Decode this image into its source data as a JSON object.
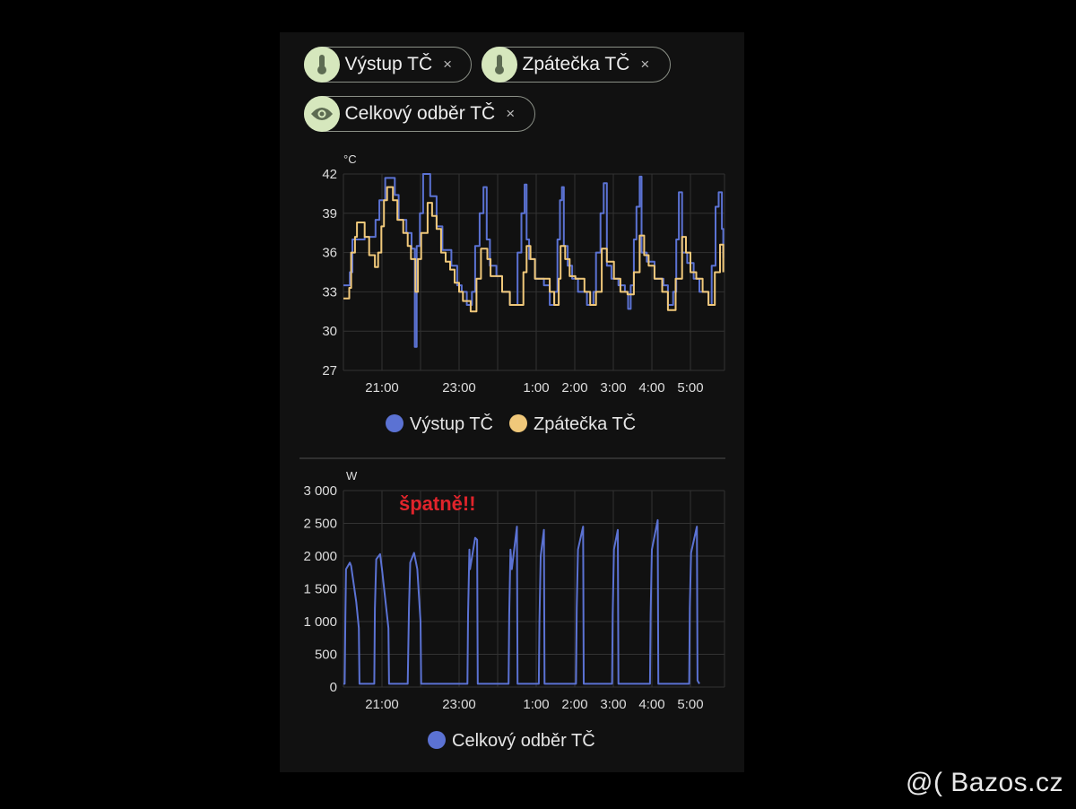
{
  "chips": [
    {
      "label": "Výstup TČ",
      "icon": "thermometer-icon"
    },
    {
      "label": "Zpátečka TČ",
      "icon": "thermometer-icon"
    },
    {
      "label": "Celkový odběr TČ",
      "icon": "eye-icon"
    }
  ],
  "chip_close": "×",
  "colors": {
    "blue": "#5b72d3",
    "yellow": "#f0c87a",
    "chip_icon_bg": "#d6e7bd",
    "annotation": "#e0242b"
  },
  "annotation": "špatně!!",
  "watermark": "@( Bazos.cz",
  "chart_data": [
    {
      "type": "line",
      "step": true,
      "unit": "°C",
      "ylim": [
        27,
        42
      ],
      "yticks": [
        "42",
        "39",
        "36",
        "33",
        "30",
        "27"
      ],
      "xrange": [
        "20:00",
        "5:53"
      ],
      "xticks": [
        "21:00",
        "23:00",
        "1:00",
        "2:00",
        "3:00",
        "4:00",
        "5:00"
      ],
      "grid": true,
      "legend": "bottom",
      "series": [
        {
          "name": "Výstup TČ",
          "color": "#5b72d3",
          "points": [
            [
              "20:00",
              33.5
            ],
            [
              "20:10",
              34.5
            ],
            [
              "20:14",
              37
            ],
            [
              "20:33",
              37.2
            ],
            [
              "20:50",
              38.5
            ],
            [
              "20:56",
              40
            ],
            [
              "21:05",
              41.7
            ],
            [
              "21:20",
              40.4
            ],
            [
              "21:26",
              38.5
            ],
            [
              "21:38",
              37.5
            ],
            [
              "21:46",
              36.3
            ],
            [
              "21:51",
              28.8
            ],
            [
              "21:54",
              36.5
            ],
            [
              "21:59",
              39
            ],
            [
              "22:04",
              42
            ],
            [
              "22:15",
              40.3
            ],
            [
              "22:25",
              38
            ],
            [
              "22:34",
              36.2
            ],
            [
              "22:48",
              35
            ],
            [
              "22:57",
              33.5
            ],
            [
              "23:04",
              33
            ],
            [
              "23:12",
              32
            ],
            [
              "23:20",
              33
            ],
            [
              "23:25",
              36.5
            ],
            [
              "23:32",
              39
            ],
            [
              "23:38",
              41
            ],
            [
              "23:43",
              37
            ],
            [
              "23:48",
              35
            ],
            [
              "23:58",
              34.2
            ],
            [
              "0:07",
              33
            ],
            [
              "0:19",
              32
            ],
            [
              "0:28",
              32
            ],
            [
              "0:31",
              36
            ],
            [
              "0:37",
              39
            ],
            [
              "0:42",
              41.2
            ],
            [
              "0:45",
              37
            ],
            [
              "0:49",
              35.5
            ],
            [
              "0:58",
              34
            ],
            [
              "1:12",
              33.5
            ],
            [
              "1:21",
              32
            ],
            [
              "1:28",
              33
            ],
            [
              "1:33",
              37
            ],
            [
              "1:37",
              40
            ],
            [
              "1:40",
              41
            ],
            [
              "1:43",
              36.5
            ],
            [
              "1:49",
              35
            ],
            [
              "1:56",
              34
            ],
            [
              "2:05",
              33
            ],
            [
              "2:19",
              32
            ],
            [
              "2:29",
              33
            ],
            [
              "2:33",
              36
            ],
            [
              "2:40",
              39
            ],
            [
              "2:45",
              41.3
            ],
            [
              "2:50",
              35
            ],
            [
              "2:57",
              34
            ],
            [
              "3:08",
              33.5
            ],
            [
              "3:18",
              33
            ],
            [
              "3:23",
              31.7
            ],
            [
              "3:27",
              33.5
            ],
            [
              "3:32",
              37
            ],
            [
              "3:36",
              39.5
            ],
            [
              "3:41",
              41.8
            ],
            [
              "3:44",
              36
            ],
            [
              "3:52",
              35.3
            ],
            [
              "4:04",
              34
            ],
            [
              "4:18",
              33.5
            ],
            [
              "4:25",
              32
            ],
            [
              "4:33",
              33
            ],
            [
              "4:38",
              37
            ],
            [
              "4:42",
              40.6
            ],
            [
              "4:47",
              36
            ],
            [
              "4:55",
              35.2
            ],
            [
              "5:05",
              34
            ],
            [
              "5:14",
              33
            ],
            [
              "5:28",
              32
            ],
            [
              "5:33",
              35
            ],
            [
              "5:39",
              39.5
            ],
            [
              "5:44",
              40.6
            ],
            [
              "5:49",
              37.8
            ],
            [
              "5:51",
              35.6
            ]
          ]
        },
        {
          "name": "Zpátečka TČ",
          "color": "#f0c87a",
          "points": [
            [
              "20:00",
              32.5
            ],
            [
              "20:09",
              33.3
            ],
            [
              "20:12",
              36
            ],
            [
              "20:18",
              37.2
            ],
            [
              "20:21",
              38.3
            ],
            [
              "20:33",
              37.2
            ],
            [
              "20:40",
              35.8
            ],
            [
              "20:49",
              34.9
            ],
            [
              "20:54",
              36
            ],
            [
              "20:59",
              38
            ],
            [
              "21:03",
              40
            ],
            [
              "21:08",
              41
            ],
            [
              "21:17",
              40
            ],
            [
              "21:24",
              38.5
            ],
            [
              "21:33",
              37.5
            ],
            [
              "21:40",
              36.5
            ],
            [
              "21:45",
              35.5
            ],
            [
              "21:52",
              33
            ],
            [
              "21:56",
              35.5
            ],
            [
              "22:01",
              37.5
            ],
            [
              "22:11",
              39.8
            ],
            [
              "22:18",
              38.8
            ],
            [
              "22:25",
              37.8
            ],
            [
              "22:32",
              36
            ],
            [
              "22:39",
              35.3
            ],
            [
              "22:46",
              34.7
            ],
            [
              "22:53",
              33.7
            ],
            [
              "23:00",
              33
            ],
            [
              "23:06",
              32.3
            ],
            [
              "23:18",
              31.5
            ],
            [
              "23:27",
              34
            ],
            [
              "23:34",
              36.3
            ],
            [
              "23:44",
              35.5
            ],
            [
              "23:49",
              34.2
            ],
            [
              "23:55",
              34.2
            ],
            [
              "0:07",
              33
            ],
            [
              "0:19",
              32
            ],
            [
              "0:33",
              32
            ],
            [
              "0:40",
              34.5
            ],
            [
              "0:45",
              36.5
            ],
            [
              "0:51",
              35.5
            ],
            [
              "0:58",
              34
            ],
            [
              "1:12",
              34
            ],
            [
              "1:21",
              33
            ],
            [
              "1:28",
              32
            ],
            [
              "1:35",
              34
            ],
            [
              "1:38",
              36.5
            ],
            [
              "1:45",
              35.5
            ],
            [
              "1:52",
              34.2
            ],
            [
              "2:01",
              34
            ],
            [
              "2:15",
              33
            ],
            [
              "2:24",
              32
            ],
            [
              "2:33",
              33
            ],
            [
              "2:42",
              36.3
            ],
            [
              "2:50",
              35.3
            ],
            [
              "3:01",
              34
            ],
            [
              "3:11",
              33
            ],
            [
              "3:22",
              32.8
            ],
            [
              "3:32",
              34.5
            ],
            [
              "3:41",
              37.3
            ],
            [
              "3:48",
              35.8
            ],
            [
              "3:55",
              35
            ],
            [
              "4:04",
              34
            ],
            [
              "4:16",
              33
            ],
            [
              "4:25",
              31.6
            ],
            [
              "4:37",
              34
            ],
            [
              "4:47",
              37.2
            ],
            [
              "4:53",
              36
            ],
            [
              "5:00",
              34.5
            ],
            [
              "5:09",
              34
            ],
            [
              "5:19",
              33
            ],
            [
              "5:28",
              32
            ],
            [
              "5:38",
              34.5
            ],
            [
              "5:46",
              36.6
            ],
            [
              "5:51",
              34.5
            ]
          ]
        }
      ]
    },
    {
      "type": "line",
      "step": false,
      "unit": "W",
      "ylim": [
        0,
        3000
      ],
      "yticks": [
        "3 000",
        "2 500",
        "2 000",
        "1 500",
        "1 000",
        "500",
        "0"
      ],
      "xrange": [
        "20:00",
        "5:53"
      ],
      "xticks": [
        "21:00",
        "23:00",
        "1:00",
        "2:00",
        "3:00",
        "4:00",
        "5:00"
      ],
      "grid": true,
      "legend": "bottom",
      "series": [
        {
          "name": "Celkový odběr TČ",
          "color": "#5b72d3",
          "points": [
            [
              "20:00",
              50
            ],
            [
              "20:02",
              50
            ],
            [
              "20:03",
              1100
            ],
            [
              "20:04",
              1800
            ],
            [
              "20:10",
              1900
            ],
            [
              "20:12",
              1850
            ],
            [
              "20:20",
              1300
            ],
            [
              "20:24",
              900
            ],
            [
              "20:25",
              50
            ],
            [
              "20:48",
              50
            ],
            [
              "20:49",
              1200
            ],
            [
              "20:51",
              1950
            ],
            [
              "20:57",
              2030
            ],
            [
              "21:00",
              1800
            ],
            [
              "21:10",
              900
            ],
            [
              "21:11",
              50
            ],
            [
              "21:40",
              50
            ],
            [
              "21:42",
              1200
            ],
            [
              "21:44",
              1900
            ],
            [
              "21:50",
              2050
            ],
            [
              "21:55",
              1800
            ],
            [
              "22:00",
              1000
            ],
            [
              "22:01",
              50
            ],
            [
              "23:13",
              50
            ],
            [
              "23:14",
              1100
            ],
            [
              "23:16",
              2100
            ],
            [
              "23:17",
              1800
            ],
            [
              "23:25",
              2280
            ],
            [
              "23:28",
              2250
            ],
            [
              "23:29",
              50
            ],
            [
              "0:17",
              50
            ],
            [
              "0:18",
              1100
            ],
            [
              "0:20",
              2100
            ],
            [
              "0:22",
              1800
            ],
            [
              "0:30",
              2450
            ],
            [
              "0:31",
              50
            ],
            [
              "1:04",
              50
            ],
            [
              "1:05",
              1000
            ],
            [
              "1:07",
              2000
            ],
            [
              "1:12",
              2400
            ],
            [
              "1:13",
              50
            ],
            [
              "2:02",
              50
            ],
            [
              "2:03",
              1200
            ],
            [
              "2:05",
              2100
            ],
            [
              "2:13",
              2450
            ],
            [
              "2:14",
              50
            ],
            [
              "2:58",
              50
            ],
            [
              "2:59",
              1100
            ],
            [
              "3:01",
              2100
            ],
            [
              "3:07",
              2400
            ],
            [
              "3:08",
              50
            ],
            [
              "3:57",
              50
            ],
            [
              "3:58",
              1100
            ],
            [
              "4:00",
              2100
            ],
            [
              "4:09",
              2550
            ],
            [
              "4:10",
              50
            ],
            [
              "4:58",
              50
            ],
            [
              "4:59",
              1200
            ],
            [
              "5:01",
              2050
            ],
            [
              "5:10",
              2450
            ],
            [
              "5:11",
              100
            ],
            [
              "5:14",
              50
            ]
          ]
        }
      ]
    }
  ]
}
